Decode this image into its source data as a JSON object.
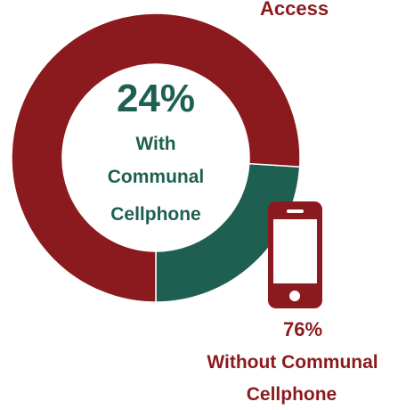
{
  "labels": {
    "top_partial": "Access",
    "center_percent": "24%",
    "center_line1": "With",
    "center_line2": "Communal",
    "center_line3": "Cellphone",
    "right_percent": "76%",
    "right_line1": "Without Communal",
    "right_line2": "Cellphone"
  },
  "icon": "smartphone-icon",
  "colors": {
    "with": "#1f5f52",
    "without": "#8b1a1e",
    "background": "#ffffff"
  },
  "chart_data": {
    "type": "pie",
    "donut": true,
    "categories": [
      "With Communal Cellphone",
      "Without Communal Cellphone"
    ],
    "values": [
      24,
      76
    ],
    "unit": "%"
  }
}
